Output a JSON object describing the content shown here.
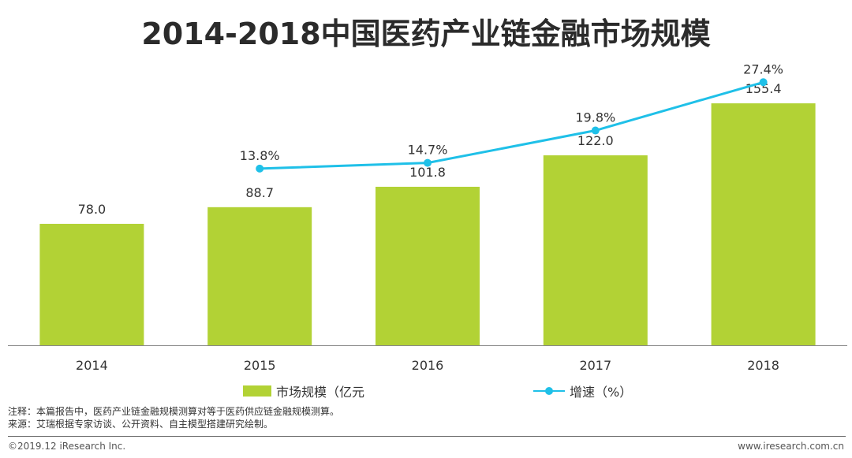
{
  "title": "2014-2018中国医药产业链金融市场规模",
  "chart_data": {
    "type": "bar+line",
    "title": "2014-2018中国医药产业链金融市场规模",
    "categories": [
      "2014",
      "2015",
      "2016",
      "2017",
      "2018"
    ],
    "series": [
      {
        "name": "市场规模（亿元",
        "type": "bar",
        "color": "#b2d235",
        "values": [
          78.0,
          88.7,
          101.8,
          122.0,
          155.4
        ],
        "labels": [
          "78.0",
          "88.7",
          "101.8",
          "122.0",
          "155.4"
        ]
      },
      {
        "name": "增速（%）",
        "type": "line",
        "color": "#1fc0e8",
        "values": [
          null,
          13.8,
          14.7,
          19.8,
          27.4
        ],
        "labels": [
          "",
          "13.8%",
          "14.7%",
          "19.8%",
          "27.4%"
        ]
      }
    ],
    "ylim_bar": [
      0,
      200
    ],
    "ylim_line": [
      -14,
      35
    ]
  },
  "legend": {
    "bar_label": "市场规模（亿元",
    "line_label": "增速（%）"
  },
  "notes": {
    "line1": "注释：本篇报告中，医药产业链金融规模测算对等于医药供应链金融规模测算。",
    "line2": "来源：艾瑞根据专家访谈、公开资料、自主模型搭建研究绘制。"
  },
  "footer": {
    "left": "©2019.12 iResearch Inc.",
    "right": "www.iresearch.com.cn"
  }
}
